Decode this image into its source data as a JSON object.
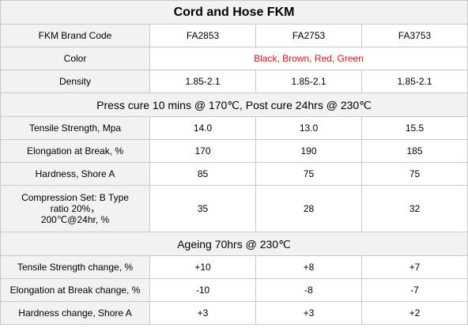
{
  "table": {
    "title": "Cord and Hose FKM",
    "header": {
      "label": "FKM Brand Code",
      "codes": [
        "FA2853",
        "FA2753",
        "FA3753"
      ]
    },
    "color_row": {
      "label": "Color",
      "value": "Black, Brown, Red, Green",
      "value_color": "#e8121a"
    },
    "density_row": {
      "label": "Density",
      "values": [
        "1.85-2.1",
        "1.85-2.1",
        "1.85-2.1"
      ]
    },
    "section_press": "Press cure 10 mins @ 170℃, Post cure 24hrs @ 230℃",
    "press_rows": [
      {
        "label": "Tensile Strength, Mpa",
        "values": [
          "14.0",
          "13.0",
          "15.5"
        ]
      },
      {
        "label": "Elongation at Break, %",
        "values": [
          "170",
          "190",
          "185"
        ]
      },
      {
        "label": "Hardness, Shore A",
        "values": [
          "85",
          "75",
          "75"
        ]
      }
    ],
    "compression_row": {
      "label_line1": "Compression Set: B Type",
      "label_line2": "ratio 20%，",
      "label_line3": "200℃@24hr, %",
      "values": [
        "35",
        "28",
        "32"
      ]
    },
    "section_ageing": "Ageing 70hrs @ 230℃",
    "ageing_rows": [
      {
        "label": "Tensile Strength change, %",
        "values": [
          "+10",
          "+8",
          "+7"
        ]
      },
      {
        "label": "Elongation at Break change, %",
        "values": [
          "-10",
          "-8",
          "-7"
        ]
      },
      {
        "label": "Hardness change, Shore A",
        "values": [
          "+3",
          "+3",
          "+2"
        ]
      }
    ]
  }
}
